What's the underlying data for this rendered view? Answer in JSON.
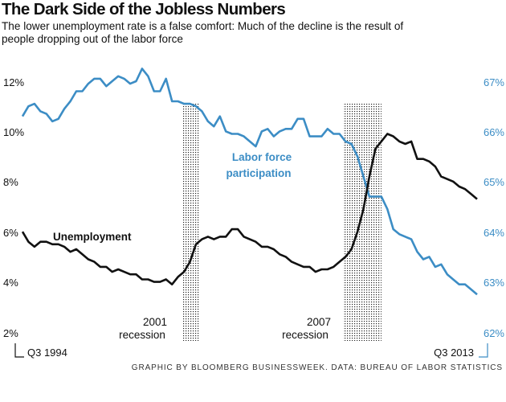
{
  "header": {
    "title": "The Dark Side of the Jobless Numbers",
    "subtitle": "The lower unemployment rate is a false comfort: Much of the decline is the result of people dropping out of the labor force"
  },
  "footer": {
    "credit": "GRAPHIC BY BLOOMBERG BUSINESSWEEK. DATA: BUREAU OF LABOR STATISTICS"
  },
  "colors": {
    "unemployment": "#111111",
    "participation": "#3c8dc5"
  },
  "chart_data": {
    "type": "line",
    "title": "The Dark Side of the Jobless Numbers",
    "x_start_label": "Q3 1994",
    "x_end_label": "Q3 2013",
    "x_range": [
      1994.5,
      2013.5
    ],
    "left_axis": {
      "ticks": [
        "12%",
        "10%",
        "8%",
        "6%",
        "4%",
        "2%"
      ],
      "values": [
        12,
        10,
        8,
        6,
        4,
        2
      ],
      "range": [
        2,
        12
      ]
    },
    "right_axis": {
      "ticks": [
        "67%",
        "66%",
        "65%",
        "64%",
        "63%",
        "62%"
      ],
      "values": [
        67,
        66,
        65,
        64,
        63,
        62
      ],
      "range": [
        62,
        67
      ]
    },
    "recessions": [
      {
        "label_year": "2001",
        "label_word": "recession",
        "start": 2001.2,
        "end": 2001.9
      },
      {
        "label_year": "2007",
        "label_word": "recession",
        "start": 2007.9,
        "end": 2009.5
      }
    ],
    "series": [
      {
        "name": "Unemployment",
        "axis": "left",
        "x": [
          1994.5,
          1994.75,
          1995,
          1995.25,
          1995.5,
          1995.75,
          1996,
          1996.25,
          1996.5,
          1996.75,
          1997,
          1997.25,
          1997.5,
          1997.75,
          1998,
          1998.25,
          1998.5,
          1998.75,
          1999,
          1999.25,
          1999.5,
          1999.75,
          2000,
          2000.25,
          2000.5,
          2000.75,
          2001,
          2001.25,
          2001.5,
          2001.75,
          2002,
          2002.25,
          2002.5,
          2002.75,
          2003,
          2003.25,
          2003.5,
          2003.75,
          2004,
          2004.25,
          2004.5,
          2004.75,
          2005,
          2005.25,
          2005.5,
          2005.75,
          2006,
          2006.25,
          2006.5,
          2006.75,
          2007,
          2007.25,
          2007.5,
          2007.75,
          2008,
          2008.25,
          2008.5,
          2008.75,
          2009,
          2009.25,
          2009.5,
          2009.75,
          2010,
          2010.25,
          2010.5,
          2010.75,
          2011,
          2011.25,
          2011.5,
          2011.75,
          2012,
          2012.25,
          2012.5,
          2012.75,
          2013,
          2013.25,
          2013.5
        ],
        "values": [
          6.0,
          5.6,
          5.4,
          5.6,
          5.6,
          5.5,
          5.5,
          5.4,
          5.2,
          5.3,
          5.1,
          4.9,
          4.8,
          4.6,
          4.6,
          4.4,
          4.5,
          4.4,
          4.3,
          4.3,
          4.1,
          4.1,
          4.0,
          4.0,
          4.1,
          3.9,
          4.2,
          4.4,
          4.8,
          5.5,
          5.7,
          5.8,
          5.7,
          5.8,
          5.8,
          6.1,
          6.1,
          5.8,
          5.7,
          5.6,
          5.4,
          5.4,
          5.3,
          5.1,
          5.0,
          4.8,
          4.7,
          4.6,
          4.6,
          4.4,
          4.5,
          4.5,
          4.6,
          4.8,
          5.0,
          5.3,
          6.0,
          6.9,
          8.2,
          9.3,
          9.6,
          9.9,
          9.8,
          9.6,
          9.5,
          9.6,
          8.9,
          8.9,
          8.8,
          8.6,
          8.2,
          8.1,
          8.0,
          7.8,
          7.7,
          7.5,
          7.3
        ]
      },
      {
        "name": "Labor force participation",
        "axis": "right",
        "x": [
          1994.5,
          1994.75,
          1995,
          1995.25,
          1995.5,
          1995.75,
          1996,
          1996.25,
          1996.5,
          1996.75,
          1997,
          1997.25,
          1997.5,
          1997.75,
          1998,
          1998.25,
          1998.5,
          1998.75,
          1999,
          1999.25,
          1999.5,
          1999.75,
          2000,
          2000.25,
          2000.5,
          2000.75,
          2001,
          2001.25,
          2001.5,
          2001.75,
          2002,
          2002.25,
          2002.5,
          2002.75,
          2003,
          2003.25,
          2003.5,
          2003.75,
          2004,
          2004.25,
          2004.5,
          2004.75,
          2005,
          2005.25,
          2005.5,
          2005.75,
          2006,
          2006.25,
          2006.5,
          2006.75,
          2007,
          2007.25,
          2007.5,
          2007.75,
          2008,
          2008.25,
          2008.5,
          2008.75,
          2009,
          2009.25,
          2009.5,
          2009.75,
          2010,
          2010.25,
          2010.5,
          2010.75,
          2011,
          2011.25,
          2011.5,
          2011.75,
          2012,
          2012.25,
          2012.5,
          2012.75,
          2013,
          2013.25,
          2013.5
        ],
        "values": [
          66.3,
          66.5,
          66.55,
          66.4,
          66.35,
          66.2,
          66.25,
          66.45,
          66.6,
          66.8,
          66.8,
          66.95,
          67.05,
          67.05,
          66.9,
          67.0,
          67.1,
          67.05,
          66.95,
          67.0,
          67.25,
          67.1,
          66.8,
          66.8,
          67.05,
          66.6,
          66.6,
          66.55,
          66.55,
          66.5,
          66.4,
          66.2,
          66.1,
          66.3,
          66.0,
          65.95,
          65.95,
          65.9,
          65.8,
          65.7,
          66.0,
          66.05,
          65.9,
          66.0,
          66.05,
          66.05,
          66.25,
          66.25,
          65.9,
          65.9,
          65.9,
          66.05,
          65.95,
          65.95,
          65.8,
          65.75,
          65.5,
          65.1,
          64.7,
          64.7,
          64.7,
          64.45,
          64.05,
          63.95,
          63.9,
          63.85,
          63.6,
          63.45,
          63.5,
          63.3,
          63.35,
          63.15,
          63.05,
          62.95,
          62.95,
          62.85,
          62.75
        ]
      }
    ],
    "annotations": {
      "unemployment_label": "Unemployment",
      "participation_label_line1": "Labor force",
      "participation_label_line2": "participation"
    }
  }
}
